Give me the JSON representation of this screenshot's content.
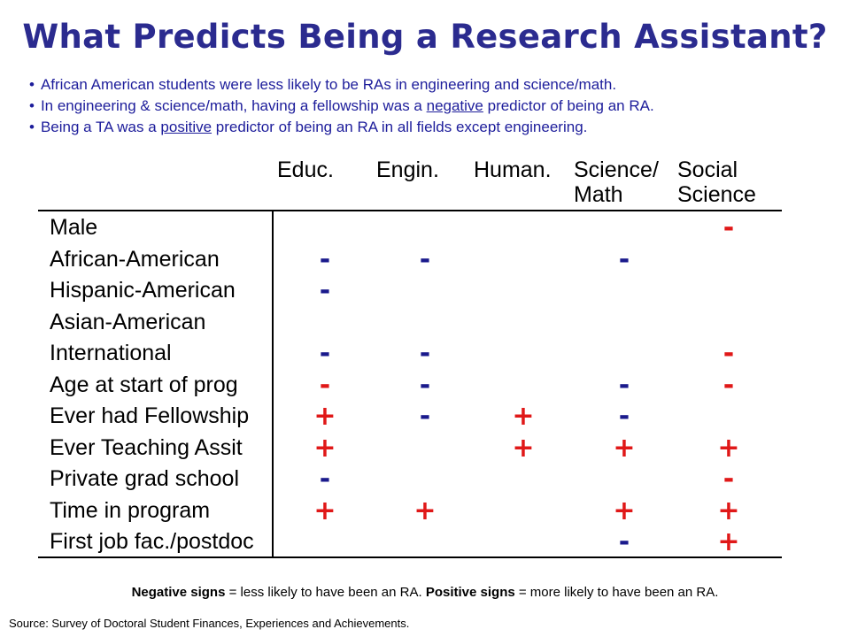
{
  "title": "What Predicts Being a Research Assistant?",
  "bullets": {
    "b1": "African American students were less likely to be RAs in engineering and science/math.",
    "b2_pre": "In engineering & science/math, having a fellowship was a ",
    "b2_u": "negative",
    "b2_post": " predictor of being an RA.",
    "b3_pre": "Being a TA was a ",
    "b3_u": "positive",
    "b3_post": " predictor of being an RA in all fields except engineering."
  },
  "columns": [
    "Educ.",
    "Engin.",
    "Human.",
    "Science/\nMath",
    "Social\nScience"
  ],
  "rows": [
    {
      "label": "Male",
      "signs": [
        "",
        "",
        "",
        "",
        "-"
      ]
    },
    {
      "label": "African-American",
      "signs": [
        "-",
        "-",
        "",
        "-",
        ""
      ]
    },
    {
      "label": "Hispanic-American",
      "signs": [
        "-",
        "",
        "",
        "",
        ""
      ]
    },
    {
      "label": "Asian-American",
      "signs": [
        "",
        "",
        "",
        "",
        ""
      ]
    },
    {
      "label": "International",
      "signs": [
        "-",
        "-",
        "",
        "",
        "-"
      ]
    },
    {
      "label": "Age at start of prog",
      "signs": [
        "-",
        "-",
        "",
        "-",
        "-"
      ]
    },
    {
      "label": "Ever had Fellowship",
      "signs": [
        "+",
        "-",
        "+",
        "-",
        ""
      ]
    },
    {
      "label": "Ever Teaching Assit",
      "signs": [
        "+",
        "",
        "+",
        "+",
        "+"
      ]
    },
    {
      "label": "Private grad school",
      "signs": [
        "-",
        "",
        "",
        "",
        "-"
      ]
    },
    {
      "label": "Time in program",
      "signs": [
        "+",
        "+",
        "",
        "+",
        "+"
      ]
    },
    {
      "label": "First job fac./postdoc",
      "signs": [
        "",
        "",
        "",
        "-",
        "+"
      ]
    }
  ],
  "sign_colors": {
    "negative": "#1a1a8c",
    "positive": "#e01818",
    "highlighted_negative": "#e01818"
  },
  "highlighted_negative_cells": [
    {
      "row": "Male",
      "column": "Social\nScience"
    },
    {
      "row": "International",
      "column": "Social\nScience"
    },
    {
      "row": "Age at start of prog",
      "column": "Educ."
    },
    {
      "row": "Age at start of prog",
      "column": "Social\nScience"
    },
    {
      "row": "Private grad school",
      "column": "Social\nScience"
    }
  ],
  "note": {
    "neg_bold": "Negative signs",
    "neg_text": " = less likely to have been an RA.  ",
    "pos_bold": "Positive signs",
    "pos_text": " = more likely to have been an RA."
  },
  "source": "Source: Survey of Doctoral Student Finances, Experiences and Achievements."
}
